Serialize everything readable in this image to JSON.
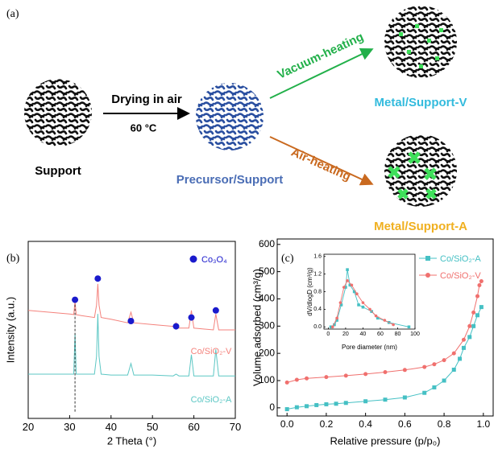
{
  "panel_a": {
    "label": "(a)",
    "support": "Support",
    "step": "Drying in air",
    "temperature": "60 °C",
    "precursor": "Precursor/Support",
    "vacuum": "Vacuum-heating",
    "air": "Air-heating",
    "metal_v": "Metal/Support-V",
    "metal_a": "Metal/Support-A"
  },
  "chart_data": [
    {
      "type": "line",
      "label": "(b)",
      "x_label": "2 Theta (°)",
      "y_label": "Intensity (a.u.)",
      "xlim": [
        20,
        70
      ],
      "xticks": [
        20,
        30,
        40,
        50,
        60,
        70
      ],
      "ylim": [
        0,
        100
      ],
      "series": [
        {
          "name": "Co/SiO₂-V",
          "color": "#f4827c",
          "x": [
            20,
            25,
            30,
            31,
            31.3,
            31.6,
            33,
            36,
            36.5,
            36.8,
            37.1,
            37.6,
            40,
            44,
            44.8,
            45.5,
            50,
            55,
            55.7,
            56.4,
            58.8,
            59.4,
            60,
            64.7,
            65.3,
            66,
            70
          ],
          "values": [
            61,
            60,
            59,
            58.7,
            66,
            58.6,
            58,
            57,
            64,
            76,
            64,
            57,
            56,
            54,
            60,
            54,
            53,
            52,
            54,
            51,
            51,
            61,
            51,
            50,
            59,
            50,
            50
          ]
        },
        {
          "name": "Co/SiO₂-A",
          "color": "#5cc7c4",
          "x": [
            20,
            25,
            30,
            31,
            31.3,
            31.6,
            33,
            36,
            36.5,
            36.8,
            37.1,
            37.6,
            40,
            44,
            44.8,
            45.5,
            50,
            55,
            55.7,
            56.4,
            58.8,
            59.4,
            60,
            64.7,
            65.3,
            66,
            70
          ],
          "values": [
            25,
            25,
            25,
            25,
            48,
            25,
            25,
            25,
            35,
            59,
            35,
            25,
            24.5,
            24.5,
            31,
            24.5,
            24.5,
            24,
            25,
            24,
            24,
            36,
            24,
            24,
            39,
            24,
            24
          ]
        }
      ],
      "peaks": {
        "name": "Co₃O₄",
        "color": "#1a1acc",
        "x": [
          31.3,
          36.8,
          44.8,
          55.7,
          59.4,
          65.3
        ],
        "values": [
          67,
          79,
          55,
          52,
          57,
          61
        ]
      }
    },
    {
      "type": "line",
      "label": "(c)",
      "x_label": "Relative pressure (p/p₀)",
      "y_label": "Volume adsorbed (cm³/g)",
      "xlim": [
        -0.05,
        1.05
      ],
      "xticks": [
        {
          "value": 0,
          "label": "0.0"
        },
        0.2,
        0.4,
        0.6,
        0.8,
        {
          "value": 1,
          "label": "1.0"
        }
      ],
      "ylim": [
        -30,
        620
      ],
      "yticks": [
        0,
        100,
        200,
        300,
        400,
        500,
        600
      ],
      "series": [
        {
          "name": "Co/SiO₂-A",
          "color": "#45c0c4",
          "marker": "square",
          "x": [
            0.0,
            0.05,
            0.1,
            0.15,
            0.2,
            0.25,
            0.3,
            0.4,
            0.5,
            0.6,
            0.7,
            0.75,
            0.8,
            0.85,
            0.88,
            0.9,
            0.93,
            0.95,
            0.97,
            0.99
          ],
          "values": [
            -5,
            2,
            6,
            10,
            13,
            15,
            18,
            24,
            30,
            38,
            55,
            75,
            100,
            140,
            180,
            220,
            260,
            300,
            340,
            370
          ]
        },
        {
          "name": "Co/SiO₂-V",
          "color": "#f0706e",
          "marker": "circle",
          "x": [
            0.0,
            0.05,
            0.1,
            0.2,
            0.3,
            0.4,
            0.5,
            0.6,
            0.7,
            0.75,
            0.8,
            0.85,
            0.9,
            0.93,
            0.95,
            0.97,
            0.98,
            0.99
          ],
          "values": [
            93,
            103,
            108,
            113,
            118,
            124,
            131,
            139,
            150,
            160,
            175,
            200,
            250,
            300,
            350,
            410,
            450,
            465
          ]
        }
      ]
    },
    {
      "type": "line",
      "x_label": "Pore diameter (nm)",
      "y_label": "dV/dlogD (cm³/g)",
      "xlim": [
        -5,
        100
      ],
      "xticks": [
        0,
        20,
        40,
        60,
        80,
        100
      ],
      "ylim": [
        -0.05,
        1.65
      ],
      "yticks": [
        {
          "value": 0,
          "label": "0.0"
        },
        0.4,
        0.8,
        1.2,
        1.6
      ],
      "series": [
        {
          "name": "Co/SiO₂-A",
          "color": "#45c0c4",
          "marker": "square",
          "x": [
            3,
            7,
            10,
            15,
            20,
            22,
            25,
            30,
            35,
            40,
            50,
            57,
            70,
            93
          ],
          "values": [
            0,
            0.05,
            0.15,
            0.5,
            0.9,
            1.3,
            0.95,
            0.8,
            0.5,
            0.45,
            0.35,
            0.2,
            0.1,
            0
          ]
        },
        {
          "name": "Co/SiO₂-V",
          "color": "#f0706e",
          "marker": "circle",
          "x": [
            5,
            10,
            14,
            18,
            22,
            27,
            33,
            40,
            48,
            55,
            65,
            75
          ],
          "values": [
            0,
            0.2,
            0.55,
            0.9,
            1.05,
            0.95,
            0.75,
            0.55,
            0.4,
            0.25,
            0.15,
            0.05
          ]
        }
      ]
    }
  ]
}
